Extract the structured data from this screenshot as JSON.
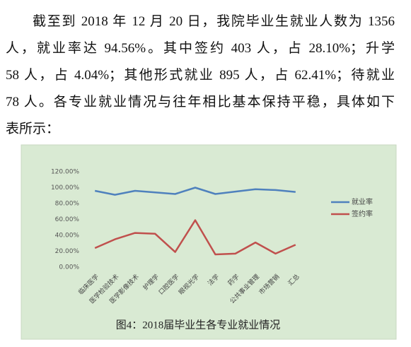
{
  "paragraph": {
    "lines": [
      "截至到 2018 年 12 月 20 日，我院毕业生就业人数为 1356",
      "人，就业率达 94.56%。其中签约 403 人，占 28.10%；升学",
      "58 人，占 4.04%；其他形式就业 895 人，占 62.41%；待就业",
      "78 人。各专业就业情况与往年相比基本保持平稳，具体如下",
      "表所示："
    ]
  },
  "chart_data": {
    "type": "line",
    "caption": "图4：2018届毕业生各专业就业情况",
    "categories": [
      "临床医学",
      "医学检验技术",
      "医学影像技术",
      "护理学",
      "口腔医学",
      "眼视光学",
      "法学",
      "药学",
      "公共事业管理",
      "市场营销",
      "汇总"
    ],
    "series": [
      {
        "name": "就业率",
        "color": "#4f81bd",
        "values": [
          96,
          91,
          96,
          94,
          92,
          100,
          92,
          95,
          98,
          97,
          94.56
        ]
      },
      {
        "name": "签约率",
        "color": "#c0504d",
        "values": [
          24,
          35,
          43,
          42,
          19,
          59,
          16,
          17,
          31,
          17,
          28.1
        ]
      }
    ],
    "ylim": [
      0,
      120
    ],
    "yticks": [
      {
        "value": 0,
        "label": "0.00%"
      },
      {
        "value": 20,
        "label": "20.00%"
      },
      {
        "value": 40,
        "label": "40.00%"
      },
      {
        "value": 60,
        "label": "60.00%"
      },
      {
        "value": 80,
        "label": "80.00%"
      },
      {
        "value": 100,
        "label": "100.00%"
      },
      {
        "value": 120,
        "label": "120.00%"
      }
    ],
    "grid": false,
    "legend": "right"
  }
}
